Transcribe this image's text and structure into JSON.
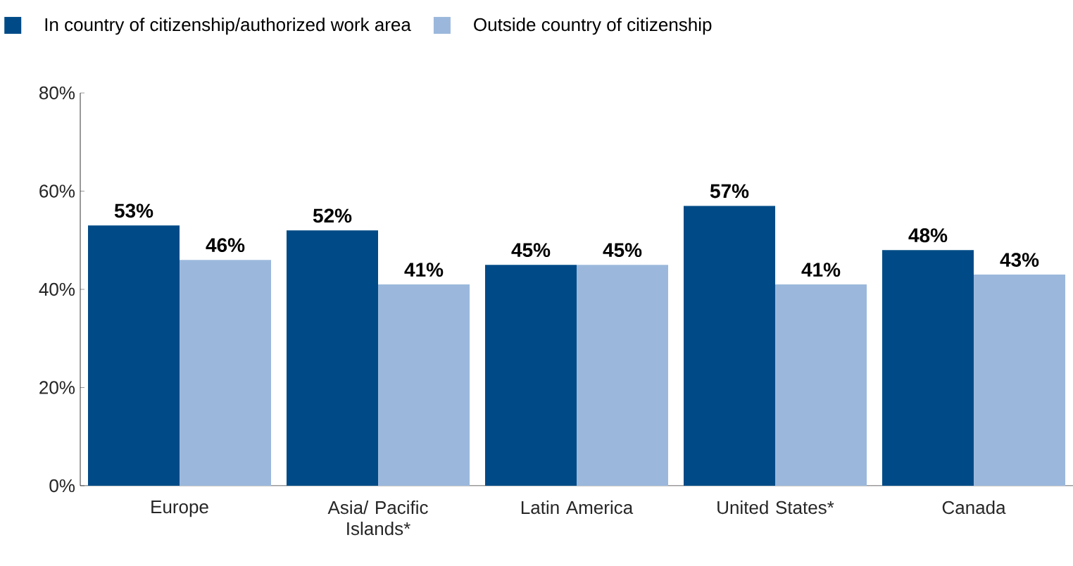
{
  "chart_data": {
    "type": "bar",
    "categories": [
      "Europe",
      "Asia/ Pacific Islands*",
      "Latin America",
      "United States*",
      "Canada"
    ],
    "series": [
      {
        "name": "In country of citizenship/authorized work area",
        "color": "#004b87",
        "values": [
          53,
          52,
          45,
          57,
          48
        ],
        "value_labels": [
          "53%",
          "52%",
          "45%",
          "57%",
          "48%"
        ]
      },
      {
        "name": "Outside country of citizenship",
        "color": "#9bb8dc",
        "values": [
          46,
          41,
          45,
          41,
          43
        ],
        "value_labels": [
          "46%",
          "41%",
          "45%",
          "41%",
          "43%"
        ]
      }
    ],
    "ylim": [
      0,
      80
    ],
    "yticks": [
      {
        "value": 0,
        "label": "0%"
      },
      {
        "value": 20,
        "label": "20%"
      },
      {
        "value": 40,
        "label": "40%"
      },
      {
        "value": 60,
        "label": "60%"
      },
      {
        "value": 80,
        "label": "80%"
      }
    ],
    "grid": false,
    "legend": "top left"
  }
}
